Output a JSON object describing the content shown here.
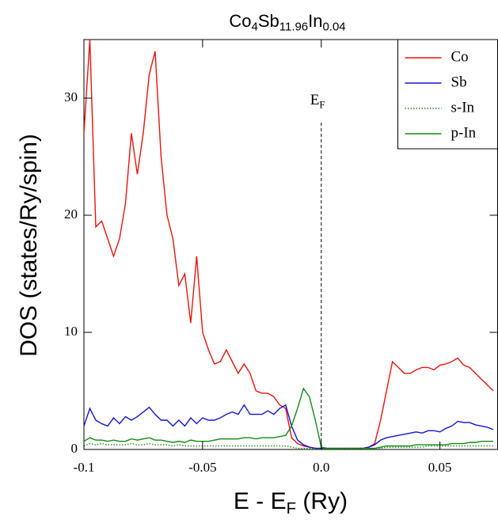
{
  "chart_data": {
    "type": "line",
    "title": [
      "Co",
      "4",
      "Sb",
      "11.96",
      "In",
      "0.04"
    ],
    "xlabel": [
      "E - E",
      "F",
      " (Ry)"
    ],
    "ylabel": "DOS (states/Ry/spin)",
    "xlim": [
      -0.1,
      0.0743
    ],
    "ylim": [
      0,
      35
    ],
    "xticks": [
      -0.1,
      -0.05,
      {
        "value": 0,
        "label": "0.0"
      },
      0.05
    ],
    "yticks": [
      0,
      10,
      20,
      30
    ],
    "legend": "upper right",
    "vline": {
      "x": 0,
      "label": [
        "E",
        "F"
      ]
    },
    "x": [
      -0.1,
      -0.0975,
      -0.095,
      -0.0925,
      -0.09,
      -0.0875,
      -0.085,
      -0.0825,
      -0.08,
      -0.0775,
      -0.075,
      -0.0725,
      -0.07,
      -0.0675,
      -0.065,
      -0.0625,
      -0.06,
      -0.0575,
      -0.055,
      -0.0525,
      -0.05,
      -0.0475,
      -0.045,
      -0.0425,
      -0.04,
      -0.0375,
      -0.035,
      -0.0325,
      -0.03,
      -0.0275,
      -0.025,
      -0.0225,
      -0.02,
      -0.0175,
      -0.015,
      -0.0125,
      -0.01,
      -0.0075,
      -0.005,
      -0.0025,
      0,
      0.0025,
      0.005,
      0.0075,
      0.01,
      0.0125,
      0.015,
      0.0175,
      0.02,
      0.0225,
      0.025,
      0.0275,
      0.03,
      0.0325,
      0.035,
      0.0375,
      0.04,
      0.0425,
      0.045,
      0.0475,
      0.05,
      0.0525,
      0.055,
      0.0575,
      0.06,
      0.0625,
      0.065,
      0.0675,
      0.07,
      0.0725
    ],
    "series": [
      {
        "name": "Co",
        "color": "#e8140c",
        "style": "solid",
        "values": [
          27,
          35,
          19,
          19.5,
          18,
          16.5,
          18,
          21,
          27,
          23.5,
          27,
          32,
          34,
          25,
          20,
          18,
          14,
          15,
          10.8,
          16.5,
          10,
          8.5,
          7.3,
          7.5,
          8.5,
          7.5,
          6.5,
          7.3,
          6.5,
          5,
          4.8,
          4.8,
          4.5,
          3.8,
          3.5,
          1,
          0.5,
          0.3,
          0.2,
          0.1,
          0.1,
          0.1,
          0.1,
          0.1,
          0.1,
          0.1,
          0.1,
          0.1,
          0.2,
          0.5,
          2.5,
          5,
          7.5,
          7,
          6.5,
          6.5,
          6.8,
          7,
          7,
          6.8,
          7.2,
          7.3,
          7.5,
          7.8,
          7.2,
          7,
          6.5,
          6,
          5.5,
          5
        ]
      },
      {
        "name": "Sb",
        "color": "#1414d2",
        "style": "solid",
        "values": [
          2,
          3.5,
          2.5,
          2.2,
          2,
          2.7,
          2.2,
          2.8,
          2.5,
          2.8,
          3.2,
          3.6,
          3,
          2.5,
          2.5,
          2,
          2.5,
          2,
          2.7,
          2.2,
          2.7,
          2.5,
          2.5,
          2.7,
          3,
          3.2,
          3,
          3.8,
          3,
          3,
          3,
          3.3,
          3,
          3.5,
          3.8,
          2,
          0.8,
          0.4,
          0.2,
          0.1,
          0.1,
          0.1,
          0.1,
          0.1,
          0.1,
          0.1,
          0.1,
          0.1,
          0.2,
          0.4,
          0.8,
          1,
          1.1,
          1.2,
          1.3,
          1.4,
          1.5,
          1.4,
          1.6,
          1.6,
          1.5,
          1.8,
          2,
          2.4,
          2.3,
          2.3,
          2.1,
          2,
          1.9,
          1.7
        ]
      },
      {
        "name": "s-In",
        "color": "#1a8a1a",
        "style": "dotted",
        "values": [
          0.3,
          0.5,
          0.4,
          0.5,
          0.4,
          0.4,
          0.4,
          0.4,
          0.5,
          0.4,
          0.4,
          0.5,
          0.4,
          0.4,
          0.4,
          0.3,
          0.4,
          0.3,
          0.3,
          0.3,
          0.3,
          0.3,
          0.3,
          0.3,
          0.3,
          0.3,
          0.3,
          0.3,
          0.3,
          0.3,
          0.3,
          0.3,
          0.3,
          0.3,
          0.3,
          0.2,
          0.1,
          0.1,
          0.1,
          0.05,
          0.05,
          0.05,
          0.05,
          0.05,
          0.05,
          0.05,
          0.05,
          0.05,
          0.05,
          0.1,
          0.1,
          0.2,
          0.2,
          0.2,
          0.2,
          0.2,
          0.2,
          0.2,
          0.3,
          0.3,
          0.3,
          0.3,
          0.3,
          0.3,
          0.3,
          0.3,
          0.3,
          0.3,
          0.3,
          0.3
        ]
      },
      {
        "name": "p-In",
        "color": "#128a12",
        "style": "solid",
        "values": [
          0.7,
          1,
          0.8,
          0.8,
          0.7,
          0.8,
          0.7,
          0.7,
          0.9,
          0.8,
          0.9,
          1,
          0.8,
          0.8,
          0.7,
          0.6,
          0.7,
          0.6,
          0.8,
          0.7,
          0.7,
          0.7,
          0.8,
          0.9,
          0.9,
          0.9,
          0.9,
          1,
          1,
          0.9,
          1,
          1,
          1,
          1.1,
          1.2,
          2,
          3.5,
          5.2,
          4.5,
          2.5,
          0.2,
          0.1,
          0.1,
          0.1,
          0.1,
          0.1,
          0.1,
          0.1,
          0.1,
          0.1,
          0.2,
          0.3,
          0.3,
          0.3,
          0.3,
          0.3,
          0.4,
          0.4,
          0.4,
          0.4,
          0.4,
          0.4,
          0.5,
          0.5,
          0.5,
          0.6,
          0.6,
          0.7,
          0.7,
          0.7
        ]
      }
    ]
  }
}
